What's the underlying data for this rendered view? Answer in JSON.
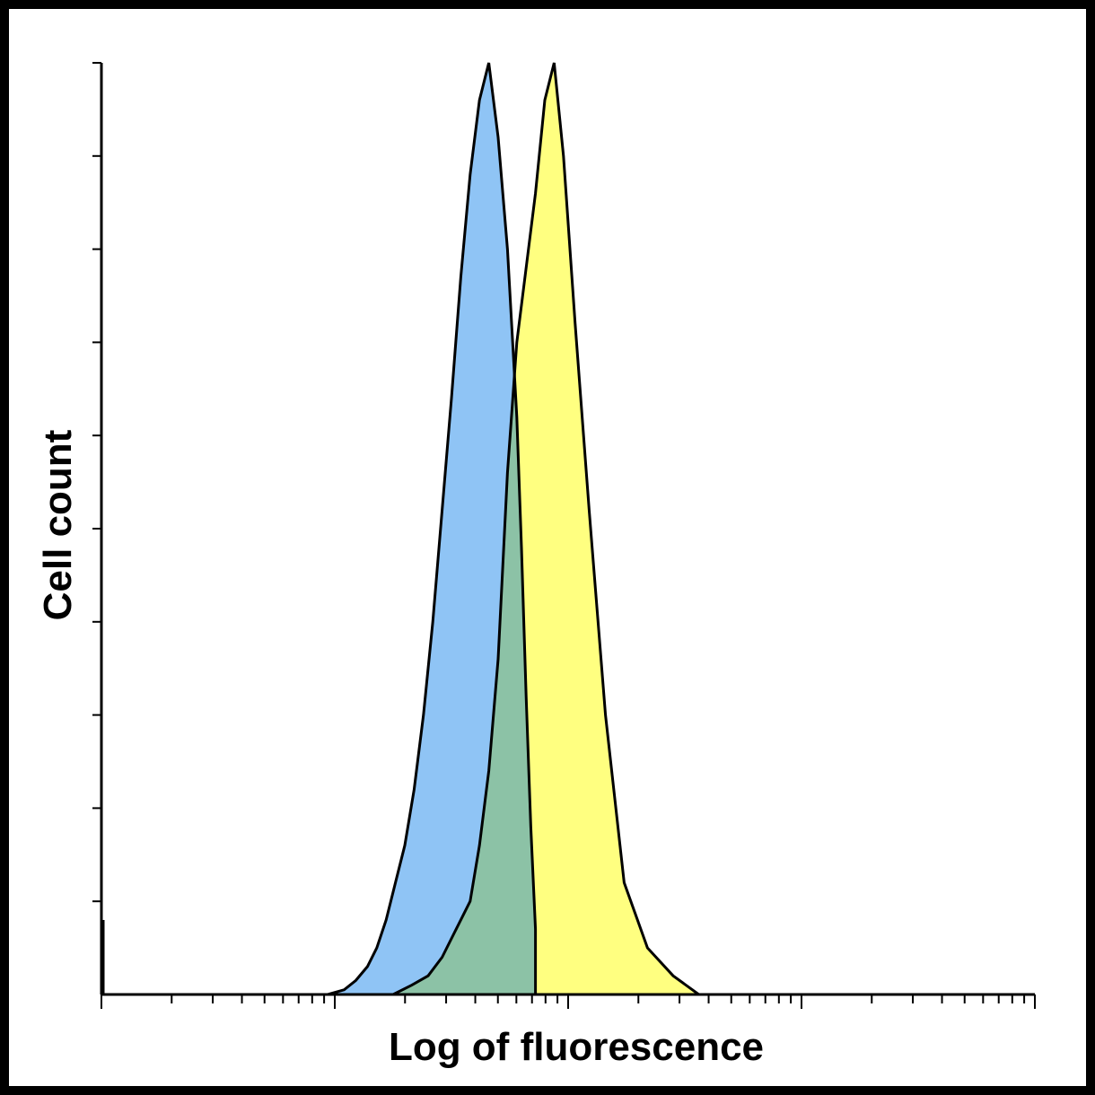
{
  "chart_data": {
    "type": "area",
    "title": "",
    "xlabel": "Log of fluorescence",
    "ylabel": "Cell count",
    "x_scale": "log",
    "x_decades": [
      0,
      4
    ],
    "y_range": [
      0,
      100
    ],
    "grid": false,
    "legend": "none",
    "series": [
      {
        "color": "#8fc4f5",
        "x": [
          0.97,
          1.04,
          1.09,
          1.14,
          1.18,
          1.22,
          1.26,
          1.3,
          1.34,
          1.38,
          1.42,
          1.46,
          1.5,
          1.54,
          1.58,
          1.62,
          1.66,
          1.7,
          1.74,
          1.78,
          1.8,
          1.82,
          1.84,
          1.86
        ],
        "y": [
          0,
          0.5,
          1.5,
          3,
          5,
          8,
          12,
          16,
          22,
          30,
          40,
          52,
          64,
          77,
          88,
          96,
          100,
          92,
          80,
          62,
          48,
          32,
          18,
          7
        ]
      },
      {
        "color": "#ffff80",
        "x": [
          1.25,
          1.33,
          1.4,
          1.46,
          1.52,
          1.58,
          1.62,
          1.66,
          1.7,
          1.74,
          1.78,
          1.82,
          1.86,
          1.9,
          1.94,
          1.98,
          2.03,
          2.09,
          2.16,
          2.24,
          2.34,
          2.45,
          2.56
        ],
        "y": [
          0,
          1,
          2,
          4,
          7,
          10,
          16,
          24,
          36,
          56,
          70,
          78,
          86,
          96,
          100,
          90,
          72,
          52,
          30,
          12,
          5,
          2,
          0
        ]
      }
    ],
    "overlap_color": "#8cc2a6"
  }
}
